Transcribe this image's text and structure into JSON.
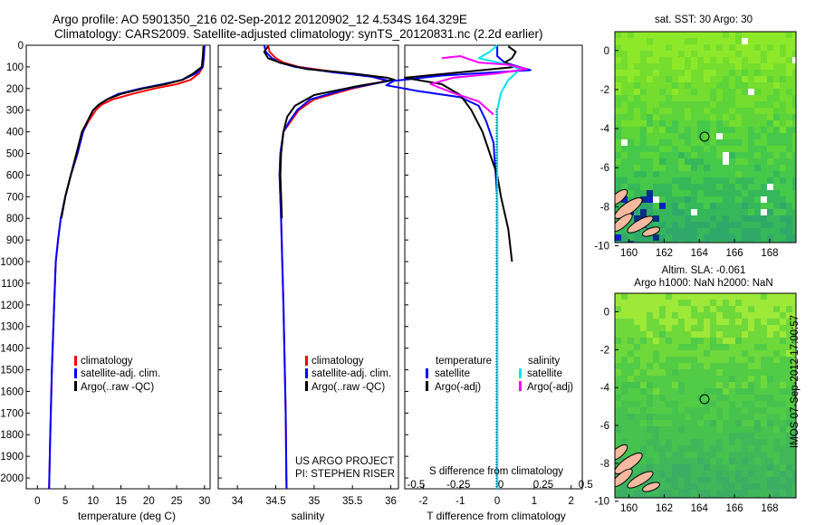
{
  "header": {
    "line1": "Argo profile: AO 5901350_216 02-Sep-2012 20120902_12 4.534S 164.329E",
    "line2": "Climatology: CARS2009. Satellite-adjusted climatology: synTS_20120831.nc (2.2d earlier)"
  },
  "side_label": "IMOS 07-Sep-2012 17:00:57",
  "colors": {
    "climatology": "#ff0000",
    "satellite": "#0000ff",
    "argo": "#000000",
    "salinity_satellite": "#00e5ee",
    "salinity_argo": "#ff00ff"
  },
  "chart_data": [
    {
      "type": "line",
      "id": "temperature",
      "xlabel": "temperature (deg C)",
      "xlim": [
        -2,
        31
      ],
      "ylim": [
        2050,
        0
      ],
      "xticks": [
        0,
        5,
        10,
        15,
        20,
        25,
        30
      ],
      "yticks": [
        0,
        100,
        200,
        300,
        400,
        500,
        600,
        700,
        800,
        900,
        1000,
        1100,
        1200,
        1300,
        1400,
        1500,
        1600,
        1700,
        1800,
        1900,
        2000
      ],
      "legend": [
        "climatology",
        "satellite-adj. clim.",
        "Argo(..raw -QC)"
      ],
      "series": [
        {
          "name": "climatology",
          "color": "#ff0000",
          "x": [
            30.0,
            29.9,
            29.7,
            29.0,
            27.5,
            25.0,
            21.0,
            17.0,
            13.5,
            11.5,
            10.5,
            9.2,
            8.2,
            7.2,
            6.0,
            5.0,
            4.2,
            3.7,
            3.3,
            3.0,
            2.6,
            2.3,
            2.1
          ],
          "y": [
            0,
            50,
            100,
            130,
            160,
            180,
            200,
            225,
            250,
            275,
            300,
            350,
            400,
            500,
            600,
            700,
            800,
            900,
            1000,
            1200,
            1500,
            1800,
            2050
          ]
        },
        {
          "name": "satellite-adj. clim.",
          "color": "#0000ff",
          "x": [
            30.0,
            29.9,
            29.7,
            28.5,
            26.0,
            22.5,
            18.5,
            14.5,
            12.5,
            11.0,
            10.0,
            9.0,
            8.2,
            7.2,
            6.0,
            5.0,
            4.2,
            3.7,
            3.3,
            3.0,
            2.6,
            2.3,
            2.1
          ],
          "y": [
            0,
            50,
            100,
            130,
            160,
            180,
            200,
            225,
            250,
            275,
            300,
            350,
            400,
            500,
            600,
            700,
            800,
            900,
            1000,
            1200,
            1500,
            1800,
            2050
          ]
        },
        {
          "name": "Argo(..raw -QC)",
          "color": "#000000",
          "x": [
            29.8,
            29.7,
            29.5,
            28.0,
            26.0,
            23.0,
            19.0,
            15.0,
            12.5,
            11.0,
            10.0,
            9.0,
            8.0,
            7.0,
            6.0,
            5.0,
            4.3
          ],
          "y": [
            5,
            50,
            100,
            130,
            160,
            180,
            200,
            225,
            250,
            275,
            300,
            350,
            400,
            500,
            600,
            700,
            800
          ]
        }
      ]
    },
    {
      "type": "line",
      "id": "salinity",
      "xlabel": "salinity",
      "xlim": [
        33.75,
        36.1
      ],
      "ylim": [
        2050,
        0
      ],
      "xticks": [
        34,
        34.5,
        35,
        35.5,
        36
      ],
      "legend": [
        "climatology",
        "satellite-adj. clim.",
        "Argo(..raw -QC)"
      ],
      "annotation": [
        "US ARGO PROJECT",
        "PI: STEPHEN RISER"
      ],
      "series": [
        {
          "name": "climatology",
          "color": "#ff0000",
          "x": [
            34.4,
            34.42,
            34.5,
            34.6,
            34.8,
            35.3,
            35.75,
            35.95,
            35.5,
            35.0,
            34.8,
            34.7,
            34.6,
            34.56,
            34.55,
            34.57,
            34.6,
            34.63,
            34.64
          ],
          "y": [
            0,
            30,
            60,
            80,
            100,
            125,
            145,
            165,
            200,
            250,
            300,
            350,
            400,
            500,
            600,
            800,
            1200,
            1700,
            2050
          ]
        },
        {
          "name": "satellite-adj. clim.",
          "color": "#0000ff",
          "x": [
            34.35,
            34.37,
            34.45,
            34.55,
            34.75,
            35.25,
            35.75,
            35.98,
            35.45,
            34.95,
            34.78,
            34.68,
            34.6,
            34.56,
            34.55,
            34.57,
            34.6,
            34.63,
            34.64
          ],
          "y": [
            0,
            30,
            60,
            80,
            100,
            125,
            145,
            165,
            200,
            250,
            300,
            350,
            400,
            500,
            600,
            800,
            1200,
            1700,
            2050
          ]
        },
        {
          "name": "Argo(..raw -QC)",
          "color": "#000000",
          "x": [
            34.4,
            34.35,
            34.4,
            34.55,
            34.9,
            35.5,
            35.95,
            36.05,
            35.55,
            35.0,
            34.75,
            34.65,
            34.6,
            34.57,
            34.56,
            34.58
          ],
          "y": [
            5,
            30,
            60,
            80,
            110,
            130,
            150,
            160,
            190,
            230,
            280,
            330,
            400,
            500,
            600,
            800
          ]
        }
      ]
    },
    {
      "type": "line",
      "id": "difference",
      "xlabel": "T difference from climatology",
      "xlabel_top": "S difference from climatology",
      "xlim": [
        -2.5,
        2.3
      ],
      "ylim": [
        2050,
        0
      ],
      "xticks": [
        -2,
        -1,
        0,
        1,
        2
      ],
      "xticks_s": [
        "-0.5",
        "-0.25",
        "0",
        "0.25",
        "0.5"
      ],
      "legend_headers": [
        "temperature",
        "salinity"
      ],
      "legend": [
        "satellite",
        "Argo(-adj)",
        "satellite",
        "Argo(-adj)"
      ],
      "series": [
        {
          "name": "satellite",
          "color": "#0000ff",
          "x": [
            0.0,
            0.0,
            0.2,
            0.6,
            0.9,
            -1.5,
            -2.8,
            -3.0,
            -2.2,
            -1.0,
            -0.5,
            -0.3,
            -0.1,
            0.0,
            0.0
          ],
          "y": [
            0,
            50,
            80,
            100,
            115,
            140,
            165,
            185,
            210,
            240,
            280,
            350,
            450,
            700,
            2050
          ]
        },
        {
          "name": "Argo(-adj)",
          "color": "#000000",
          "x": [
            0.3,
            0.5,
            0.4,
            0.2,
            0.5,
            -1.0,
            -2.5,
            -1.5,
            -1.0,
            -0.7,
            -0.4,
            -0.2,
            0.0,
            0.1,
            0.3,
            0.4
          ],
          "y": [
            5,
            30,
            60,
            80,
            100,
            125,
            150,
            180,
            230,
            300,
            400,
            500,
            600,
            700,
            850,
            1000
          ]
        },
        {
          "name": "satellite (salinity)",
          "color": "#00e5ee",
          "x": [
            0.0,
            -0.2,
            -0.5,
            0.3,
            0.6,
            0.5,
            0.3,
            0.1,
            0.0,
            0.0,
            0.0
          ],
          "y": [
            0,
            30,
            60,
            90,
            110,
            130,
            160,
            220,
            300,
            400,
            2050
          ]
        },
        {
          "name": "Argo(-adj) (salinity)",
          "color": "#ff00ff",
          "x": [
            -1.5,
            -1.0,
            -0.5,
            0.3,
            0.8,
            0.0,
            -1.2,
            -1.8,
            -1.2,
            -0.5,
            -0.1
          ],
          "y": [
            60,
            50,
            80,
            90,
            110,
            130,
            150,
            180,
            220,
            260,
            320
          ]
        }
      ]
    },
    {
      "type": "heatmap",
      "id": "sst-map",
      "title": "sat. SST: 30 Argo: 30",
      "xticks": [
        160,
        162,
        164,
        166,
        168
      ],
      "yticks": [
        0,
        -2,
        -4,
        -6,
        -8,
        -10
      ],
      "marker": {
        "lon": 164.329,
        "lat": -4.534
      }
    },
    {
      "type": "heatmap",
      "id": "sla-map",
      "title": [
        "Altim. SLA: -0.061",
        "Argo h1000: NaN h2000: NaN"
      ],
      "xticks": [
        160,
        162,
        164,
        166,
        168
      ],
      "yticks": [
        0,
        -2,
        -4,
        -6,
        -8,
        -10
      ],
      "marker": {
        "lon": 164.329,
        "lat": -4.534
      }
    }
  ]
}
